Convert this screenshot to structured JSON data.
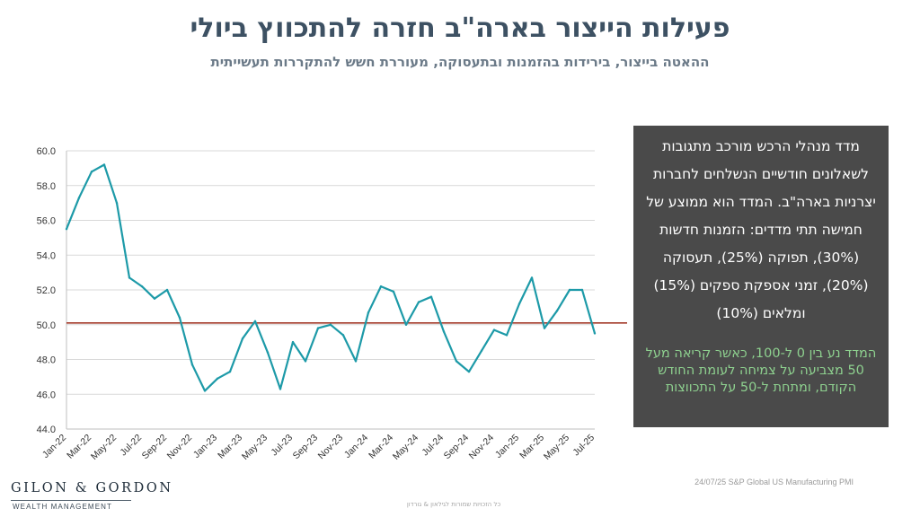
{
  "header": {
    "title": "פעילות הייצור בארה\"ב חזרה להתכווץ ביולי",
    "subtitle": "ההאטה בייצור, בירידות בהזמנות ובתעסוקה, מעוררת חשש להתקררות תעשייתית"
  },
  "panel": {
    "description": "מדד מנהלי הרכש מורכב  מתגובות לשאלונים חודשיים הנשלחים לחברות יצרניות בארה\"ב. המדד הוא ממוצע של חמישה תתי מדדים: הזמנות חדשות (30%), תפוקה (25%), תעסוקה (20%), זמני אספקת ספקים (15%) ומלאים (10%)",
    "note": "המדד נע בין 0 ל-100, כאשר קריאה מעל 50 מצביעה על צמיחה לעומת החודש הקודם, ומתחת ל-50 על התכווצות"
  },
  "source": "24/07/25 S&P Global US Manufacturing PMI",
  "footer": "כל הזכויות שמורות לגילאון & גורדון",
  "logo": {
    "name": "GILON & GORDON",
    "tagline": "WEALTH MANAGEMENT"
  },
  "colors": {
    "line": "#1d9aa8",
    "reference": "#a33a2a",
    "grid": "#d9d9d9",
    "title": "#3d5163",
    "panel_bg": "#4a4a4a",
    "panel_note": "#8ed18f"
  },
  "chart_data": {
    "type": "line",
    "ylim": [
      44.0,
      60.0
    ],
    "yticks": [
      "44.0",
      "46.0",
      "48.0",
      "50.0",
      "52.0",
      "54.0",
      "56.0",
      "58.0",
      "60.0"
    ],
    "x_tick_labels": [
      "Jan-22",
      "Mar-22",
      "May-22",
      "Jul-22",
      "Sep-22",
      "Nov-22",
      "Jan-23",
      "Mar-23",
      "May-23",
      "Jul-23",
      "Sep-23",
      "Nov-23",
      "Jan-24",
      "Mar-24",
      "May-24",
      "Jul-24",
      "Sep-24",
      "Nov-24",
      "Jan-25",
      "Mar-25",
      "May-25",
      "Jul-25"
    ],
    "x_tick_every": 2,
    "categories": [
      "Jan-22",
      "Feb-22",
      "Mar-22",
      "Apr-22",
      "May-22",
      "Jun-22",
      "Jul-22",
      "Aug-22",
      "Sep-22",
      "Oct-22",
      "Nov-22",
      "Dec-22",
      "Jan-23",
      "Feb-23",
      "Mar-23",
      "Apr-23",
      "May-23",
      "Jun-23",
      "Jul-23",
      "Aug-23",
      "Sep-23",
      "Oct-23",
      "Nov-23",
      "Dec-23",
      "Jan-24",
      "Feb-24",
      "Mar-24",
      "Apr-24",
      "May-24",
      "Jun-24",
      "Jul-24",
      "Aug-24",
      "Sep-24",
      "Oct-24",
      "Nov-24",
      "Dec-24",
      "Jan-25",
      "Feb-25",
      "Mar-25",
      "Apr-25",
      "May-25",
      "Jun-25",
      "Jul-25"
    ],
    "values": [
      55.5,
      57.3,
      58.8,
      59.2,
      57.0,
      52.7,
      52.2,
      51.5,
      52.0,
      50.4,
      47.7,
      46.2,
      46.9,
      47.3,
      49.2,
      50.2,
      48.4,
      46.3,
      49.0,
      47.9,
      49.8,
      50.0,
      49.4,
      47.9,
      50.7,
      52.2,
      51.9,
      50.0,
      51.3,
      51.6,
      49.6,
      47.9,
      47.3,
      48.5,
      49.7,
      49.4,
      51.2,
      52.7,
      49.8,
      50.8,
      52.0,
      52.0,
      49.5
    ],
    "reference_line": 50.1,
    "grid": "horizontal",
    "legend": "none"
  }
}
